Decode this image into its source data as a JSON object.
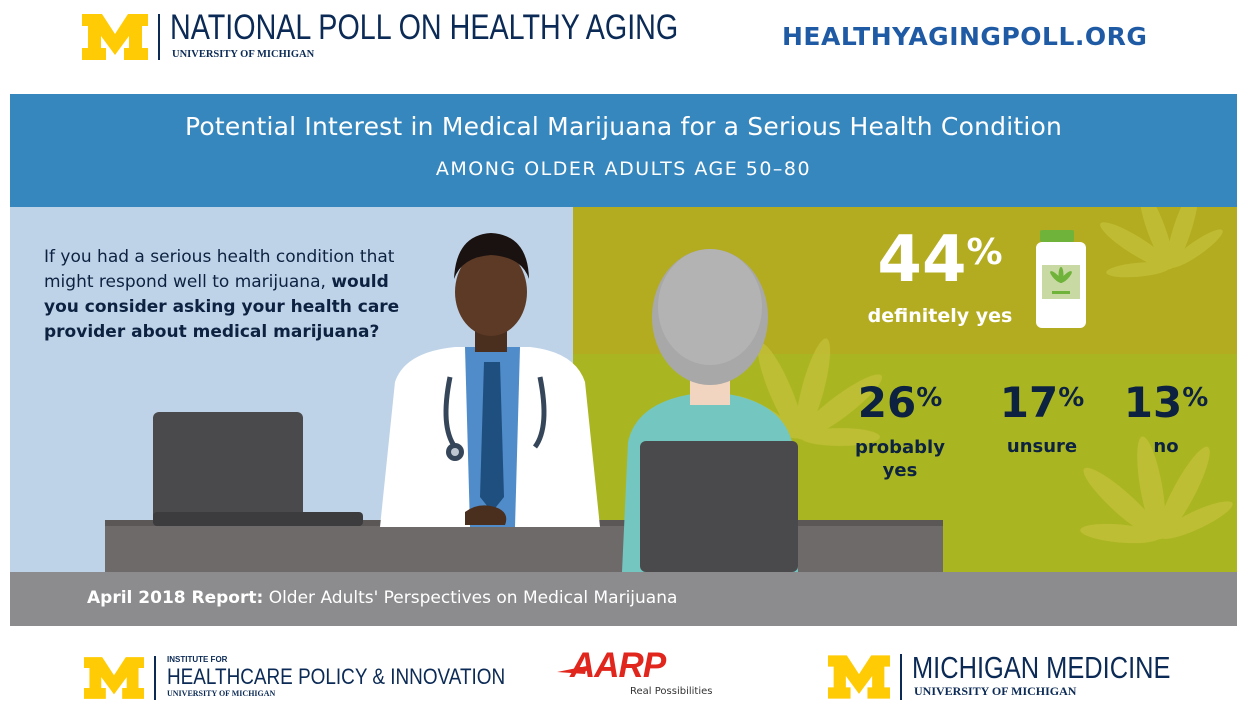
{
  "header": {
    "brand_name": "NATIONAL POLL ON HEALTHY AGING",
    "brand_sub": "UNIVERSITY OF MICHIGAN",
    "site_url": "HEALTHYAGINGPOLL.ORG"
  },
  "title": {
    "main": "Potential Interest in Medical Marijuana for a Serious Health Condition",
    "sub": "AMONG OLDER ADULTS AGE 50–80"
  },
  "question": {
    "plain": "If you had a serious health condition that might respond well to marijuana, ",
    "bold": "would you consider asking your health care provider about medical marijuana?"
  },
  "results": [
    {
      "value": "44",
      "unit": "%",
      "label": "definitely yes"
    },
    {
      "value": "26",
      "unit": "%",
      "label_line1": "probably",
      "label_line2": "yes"
    },
    {
      "value": "17",
      "unit": "%",
      "label": "unsure"
    },
    {
      "value": "13",
      "unit": "%",
      "label": "no"
    }
  ],
  "report": {
    "bold": "April 2018 Report:",
    "text": " Older Adults' Perspectives on Medical Marijuana"
  },
  "footer": {
    "ihpi_small": "INSTITUTE FOR",
    "ihpi_name": "HEALTHCARE POLICY & INNOVATION",
    "ihpi_sub": "UNIVERSITY OF MICHIGAN",
    "aarp_word": "AARP",
    "aarp_tag": "Real Possibilities",
    "mm_name": "MICHIGAN MEDICINE",
    "mm_sub": "UNIVERSITY OF MICHIGAN"
  },
  "colors": {
    "navy": "#0b2a55",
    "title_blue": "#3787bf",
    "left_panel": "#bfd3e8",
    "olive_top": "#b3ac20",
    "olive_bottom": "#aab522",
    "maize": "#ffcb05",
    "aarp_red": "#e0261d"
  },
  "icons": [
    "block-m-logo",
    "medicine-bottle-icon",
    "cannabis-leaf-icon"
  ]
}
